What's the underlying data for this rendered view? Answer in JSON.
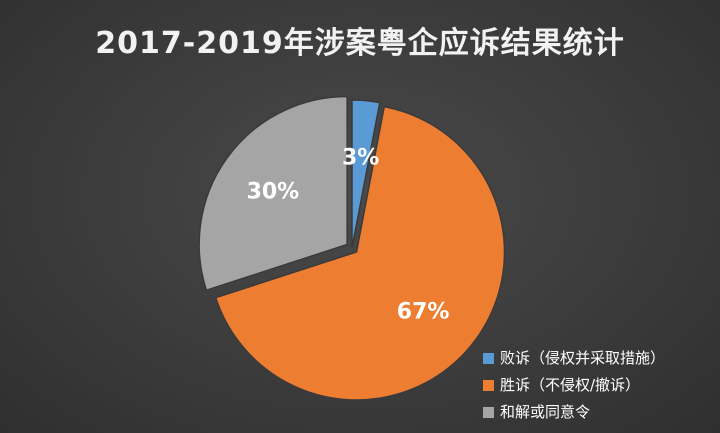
{
  "chart_data": {
    "type": "pie",
    "title": "2017-2019年涉案粤企应诉结果统计",
    "categories": [
      "败诉（侵权并采取措施）",
      "胜诉（不侵权/撤诉）",
      "和解或同意令"
    ],
    "values": [
      3,
      67,
      30
    ],
    "labels": [
      "3%",
      "67%",
      "30%"
    ],
    "colors": [
      "#5b9bd5",
      "#ed7d31",
      "#a5a5a5"
    ],
    "legend_position": "bottom-right"
  }
}
